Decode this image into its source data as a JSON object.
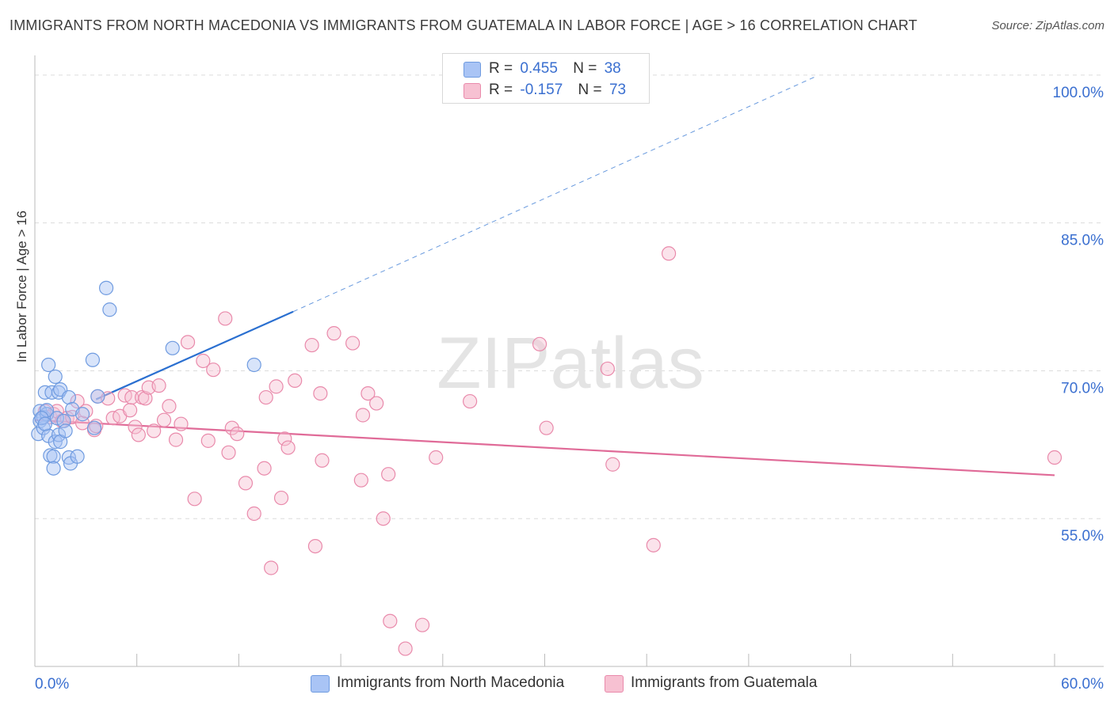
{
  "title": "IMMIGRANTS FROM NORTH MACEDONIA VS IMMIGRANTS FROM GUATEMALA IN LABOR FORCE | AGE > 16 CORRELATION CHART",
  "source": "Source: ZipAtlas.com",
  "watermark": "ZIPatlas",
  "legend": {
    "r_label": "R =",
    "n_label": "N =",
    "series1": {
      "r": "0.455",
      "n": "38"
    },
    "series2": {
      "r": "-0.157",
      "n": "73"
    }
  },
  "colors": {
    "series1_fill": "#a9c4f5",
    "series1_stroke": "#6f9be0",
    "series1_line": "#2a6fd0",
    "series2_fill": "#f7c1d2",
    "series2_stroke": "#e98aab",
    "series2_line": "#e06b98",
    "tick_text": "#3a6fd0",
    "grid": "#dcdcdc"
  },
  "chart_data": {
    "type": "scatter",
    "title": "IMMIGRANTS FROM NORTH MACEDONIA VS IMMIGRANTS FROM GUATEMALA IN LABOR FORCE | AGE > 16 CORRELATION CHART",
    "xlabel": "",
    "ylabel": "In Labor Force | Age > 16",
    "xlim": [
      0,
      60
    ],
    "ylim": [
      40,
      102
    ],
    "x_tick_labels": [
      "0.0%",
      "60.0%"
    ],
    "y_ticks": [
      55,
      70,
      85,
      100
    ],
    "y_tick_labels": [
      "55.0%",
      "70.0%",
      "85.0%",
      "100.0%"
    ],
    "grid": true,
    "legend_position": "top-center",
    "series": [
      {
        "name": "Immigrants from North Macedonia",
        "points": [
          [
            0.3,
            65.9
          ],
          [
            0.3,
            64.9
          ],
          [
            0.2,
            63.6
          ],
          [
            0.5,
            64.2
          ],
          [
            0.5,
            65.3
          ],
          [
            0.6,
            67.8
          ],
          [
            0.7,
            65.6
          ],
          [
            0.7,
            66.0
          ],
          [
            0.8,
            63.4
          ],
          [
            0.8,
            70.6
          ],
          [
            0.9,
            61.4
          ],
          [
            1.0,
            67.8
          ],
          [
            1.1,
            61.3
          ],
          [
            1.1,
            60.1
          ],
          [
            1.2,
            62.8
          ],
          [
            1.2,
            69.4
          ],
          [
            1.3,
            65.2
          ],
          [
            1.4,
            67.8
          ],
          [
            1.4,
            63.5
          ],
          [
            1.5,
            62.8
          ],
          [
            1.5,
            68.1
          ],
          [
            1.7,
            64.9
          ],
          [
            1.8,
            63.9
          ],
          [
            2.0,
            67.3
          ],
          [
            2.0,
            61.2
          ],
          [
            2.1,
            60.6
          ],
          [
            2.2,
            66.1
          ],
          [
            2.5,
            61.3
          ],
          [
            2.8,
            65.6
          ],
          [
            3.4,
            71.1
          ],
          [
            3.5,
            64.2
          ],
          [
            3.7,
            67.4
          ],
          [
            4.2,
            78.4
          ],
          [
            4.4,
            76.2
          ],
          [
            8.1,
            72.3
          ],
          [
            12.9,
            70.6
          ],
          [
            0.4,
            65.2
          ],
          [
            0.6,
            64.6
          ]
        ]
      },
      {
        "name": "Immigrants from Guatemala",
        "points": [
          [
            0.6,
            65.9
          ],
          [
            0.9,
            65.3
          ],
          [
            1.1,
            65.6
          ],
          [
            1.3,
            65.9
          ],
          [
            1.6,
            64.9
          ],
          [
            1.9,
            65.2
          ],
          [
            2.2,
            65.3
          ],
          [
            2.5,
            66.9
          ],
          [
            2.8,
            64.7
          ],
          [
            3.0,
            65.9
          ],
          [
            3.5,
            64.0
          ],
          [
            3.7,
            67.4
          ],
          [
            4.3,
            67.2
          ],
          [
            4.6,
            65.2
          ],
          [
            5.0,
            65.4
          ],
          [
            5.3,
            67.5
          ],
          [
            5.6,
            66.0
          ],
          [
            5.7,
            67.3
          ],
          [
            5.9,
            64.3
          ],
          [
            6.1,
            63.5
          ],
          [
            6.3,
            67.3
          ],
          [
            6.5,
            67.2
          ],
          [
            6.7,
            68.3
          ],
          [
            7.0,
            63.9
          ],
          [
            7.3,
            68.5
          ],
          [
            7.6,
            65.0
          ],
          [
            7.9,
            66.4
          ],
          [
            8.3,
            63.0
          ],
          [
            8.6,
            64.6
          ],
          [
            9.0,
            72.9
          ],
          [
            9.4,
            57.0
          ],
          [
            9.9,
            71.0
          ],
          [
            10.2,
            62.9
          ],
          [
            10.5,
            70.1
          ],
          [
            11.2,
            75.3
          ],
          [
            11.4,
            61.7
          ],
          [
            11.6,
            64.2
          ],
          [
            11.9,
            63.6
          ],
          [
            12.4,
            58.6
          ],
          [
            12.9,
            55.5
          ],
          [
            13.5,
            60.1
          ],
          [
            13.6,
            67.3
          ],
          [
            13.9,
            50.0
          ],
          [
            14.2,
            68.4
          ],
          [
            14.5,
            57.1
          ],
          [
            14.7,
            63.1
          ],
          [
            14.9,
            62.2
          ],
          [
            15.3,
            69.0
          ],
          [
            16.3,
            72.6
          ],
          [
            16.5,
            52.2
          ],
          [
            16.8,
            67.7
          ],
          [
            16.9,
            60.9
          ],
          [
            17.6,
            73.8
          ],
          [
            18.7,
            72.8
          ],
          [
            19.2,
            58.9
          ],
          [
            19.3,
            65.5
          ],
          [
            19.6,
            67.7
          ],
          [
            20.1,
            66.7
          ],
          [
            20.5,
            55.0
          ],
          [
            20.8,
            59.5
          ],
          [
            20.9,
            44.6
          ],
          [
            21.8,
            41.8
          ],
          [
            22.8,
            44.2
          ],
          [
            23.6,
            61.2
          ],
          [
            25.6,
            66.9
          ],
          [
            29.7,
            72.7
          ],
          [
            30.1,
            64.2
          ],
          [
            33.7,
            70.2
          ],
          [
            34.0,
            60.5
          ],
          [
            36.4,
            52.3
          ],
          [
            37.3,
            81.9
          ],
          [
            60.0,
            61.2
          ],
          [
            3.6,
            64.4
          ]
        ]
      }
    ],
    "trend_lines": [
      {
        "series": "Immigrants from North Macedonia",
        "solid": [
          [
            3.6,
            67.1
          ],
          [
            15.2,
            76.0
          ]
        ],
        "dashed": [
          [
            15.2,
            76.0
          ],
          [
            46.0,
            99.9
          ]
        ]
      },
      {
        "series": "Immigrants from Guatemala",
        "solid": [
          [
            0,
            65.0
          ],
          [
            60,
            59.4
          ]
        ]
      }
    ]
  }
}
